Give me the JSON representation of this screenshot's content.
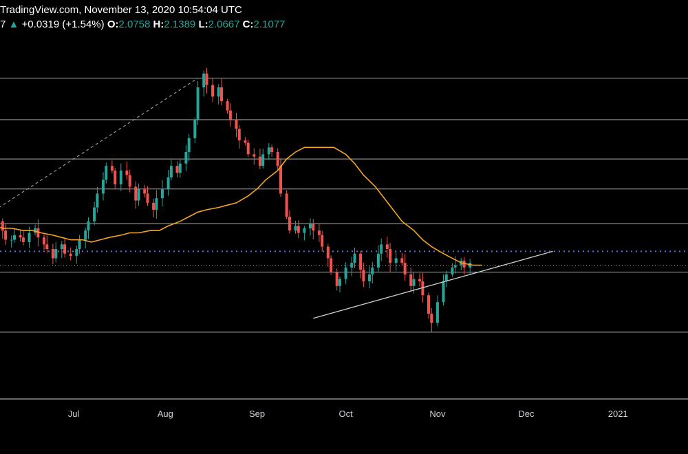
{
  "header": {
    "source": "TradingView.com, November 13, 2020 10:54:04 UTC",
    "change_prefix": "7",
    "change_arrow": "▲",
    "change": "+0.0319 (+1.54%)",
    "o_label": "O:",
    "o_value": "2.0758",
    "h_label": "H:",
    "h_value": "2.1389",
    "l_label": "L:",
    "l_value": "2.0667",
    "c_label": "C:",
    "c_value": "2.1077"
  },
  "colors": {
    "background": "#000000",
    "up": "#26a69a",
    "down": "#ef5350",
    "moving_average": "#f5a623",
    "support_level": "#5b6cf0",
    "horizontal_levels": "#cfcfcf",
    "trendline": "#d0d0d0"
  },
  "chart_data": {
    "type": "candlestick",
    "x_axis": {
      "ticks": [
        {
          "label": "Jul",
          "date": "2020-07-01"
        },
        {
          "label": "Aug",
          "date": "2020-08-01"
        },
        {
          "label": "Sep",
          "date": "2020-09-01"
        },
        {
          "label": "Oct",
          "date": "2020-10-01"
        },
        {
          "label": "Nov",
          "date": "2020-11-01"
        },
        {
          "label": "Dec",
          "date": "2020-12-01"
        },
        {
          "label": "2021",
          "date": "2021-01-01"
        }
      ]
    },
    "y_range": [
      1.6,
      3.0
    ],
    "grid": false,
    "horizontal_levels": [
      2.9,
      2.72,
      2.55,
      2.42,
      2.27,
      2.06,
      1.8
    ],
    "support_level_dotted": 2.15,
    "last_price_dotted": 2.09,
    "close_series": [
      2.32,
      2.3,
      2.29,
      2.28,
      2.24,
      2.2,
      2.2,
      2.22,
      2.21,
      2.19,
      2.23,
      2.25,
      2.21,
      2.18,
      2.16,
      2.12,
      2.16,
      2.18,
      2.14,
      2.13,
      2.16,
      2.2,
      2.24,
      2.28,
      2.34,
      2.4,
      2.46,
      2.52,
      2.5,
      2.44,
      2.5,
      2.48,
      2.43,
      2.37,
      2.42,
      2.4,
      2.36,
      2.33,
      2.38,
      2.42,
      2.47,
      2.52,
      2.49,
      2.53,
      2.58,
      2.64,
      2.72,
      2.86,
      2.92,
      2.87,
      2.82,
      2.86,
      2.8,
      2.76,
      2.72,
      2.68,
      2.63,
      2.62,
      2.57,
      2.56,
      2.52,
      2.57,
      2.6,
      2.58,
      2.52,
      2.4,
      2.3,
      2.24,
      2.26,
      2.23,
      2.25,
      2.27,
      2.24,
      2.22,
      2.17,
      2.12,
      2.06,
      2.0,
      2.03,
      2.08,
      2.1,
      2.14,
      2.07,
      2.02,
      2.05,
      2.08,
      2.14,
      2.18,
      2.16,
      2.1,
      2.12,
      2.1,
      2.05,
      2.0,
      2.03,
      2.02,
      1.96,
      1.88,
      1.84,
      1.93,
      2.02,
      2.05,
      2.08,
      2.09,
      2.11,
      2.08,
      2.1
    ],
    "ma_series": [
      2.25,
      2.26,
      2.25,
      2.25,
      2.24,
      2.24,
      2.23,
      2.22,
      2.21,
      2.2,
      2.2,
      2.19,
      2.2,
      2.21,
      2.22,
      2.23,
      2.23,
      2.24,
      2.24,
      2.26,
      2.28,
      2.3,
      2.32,
      2.33,
      2.34,
      2.35,
      2.36,
      2.39,
      2.42,
      2.46,
      2.5,
      2.55,
      2.58,
      2.6,
      2.6,
      2.6,
      2.6,
      2.57,
      2.53,
      2.48,
      2.43,
      2.38,
      2.33,
      2.28,
      2.24,
      2.2,
      2.17,
      2.14,
      2.12,
      2.1,
      2.09,
      2.09
    ],
    "trendline": {
      "from": {
        "date": "2020-09-20",
        "value": 1.86
      },
      "to": {
        "date": "2020-12-10",
        "value": 2.15
      }
    },
    "dashed_line": {
      "from": {
        "date": "2020-06-01",
        "value": 2.3
      },
      "to": {
        "date": "2020-08-12",
        "value": 2.9
      }
    }
  }
}
